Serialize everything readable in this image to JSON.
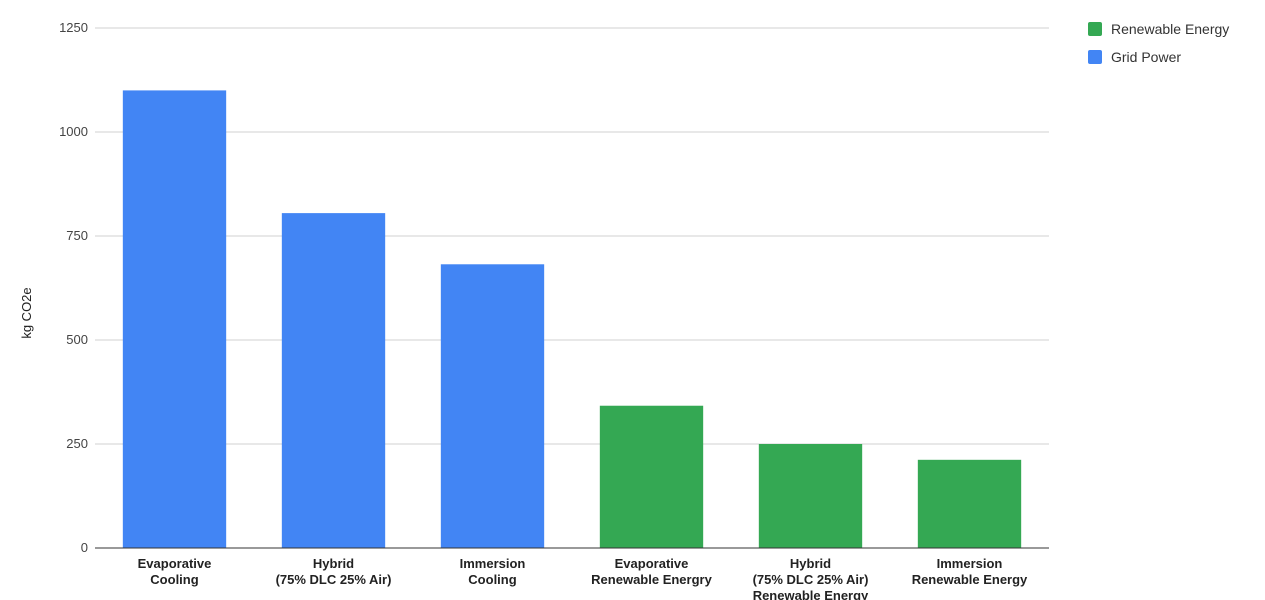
{
  "chart_data": {
    "type": "bar",
    "title": "",
    "xlabel": "",
    "ylabel": "kg CO2e",
    "ylim": [
      0,
      1250
    ],
    "yticks": [
      0,
      250,
      500,
      750,
      1000,
      1250
    ],
    "grid": true,
    "legend_position": "top-right",
    "categories": [
      [
        "Evaporative",
        "Cooling"
      ],
      [
        "Hybrid",
        "(75% DLC 25% Air)"
      ],
      [
        "Immersion",
        "Cooling"
      ],
      [
        "Evaporative",
        "Renewable Energry"
      ],
      [
        "Hybrid",
        "(75% DLC 25% Air)",
        "Renewable Energy"
      ],
      [
        "Immersion",
        "Renewable Energy"
      ]
    ],
    "series": [
      {
        "name": "Renewable Energy",
        "color": "#34a853",
        "values": [
          null,
          null,
          null,
          342,
          250,
          212
        ]
      },
      {
        "name": "Grid Power",
        "color": "#4285f4",
        "values": [
          1100,
          805,
          682,
          null,
          null,
          null
        ]
      }
    ]
  }
}
